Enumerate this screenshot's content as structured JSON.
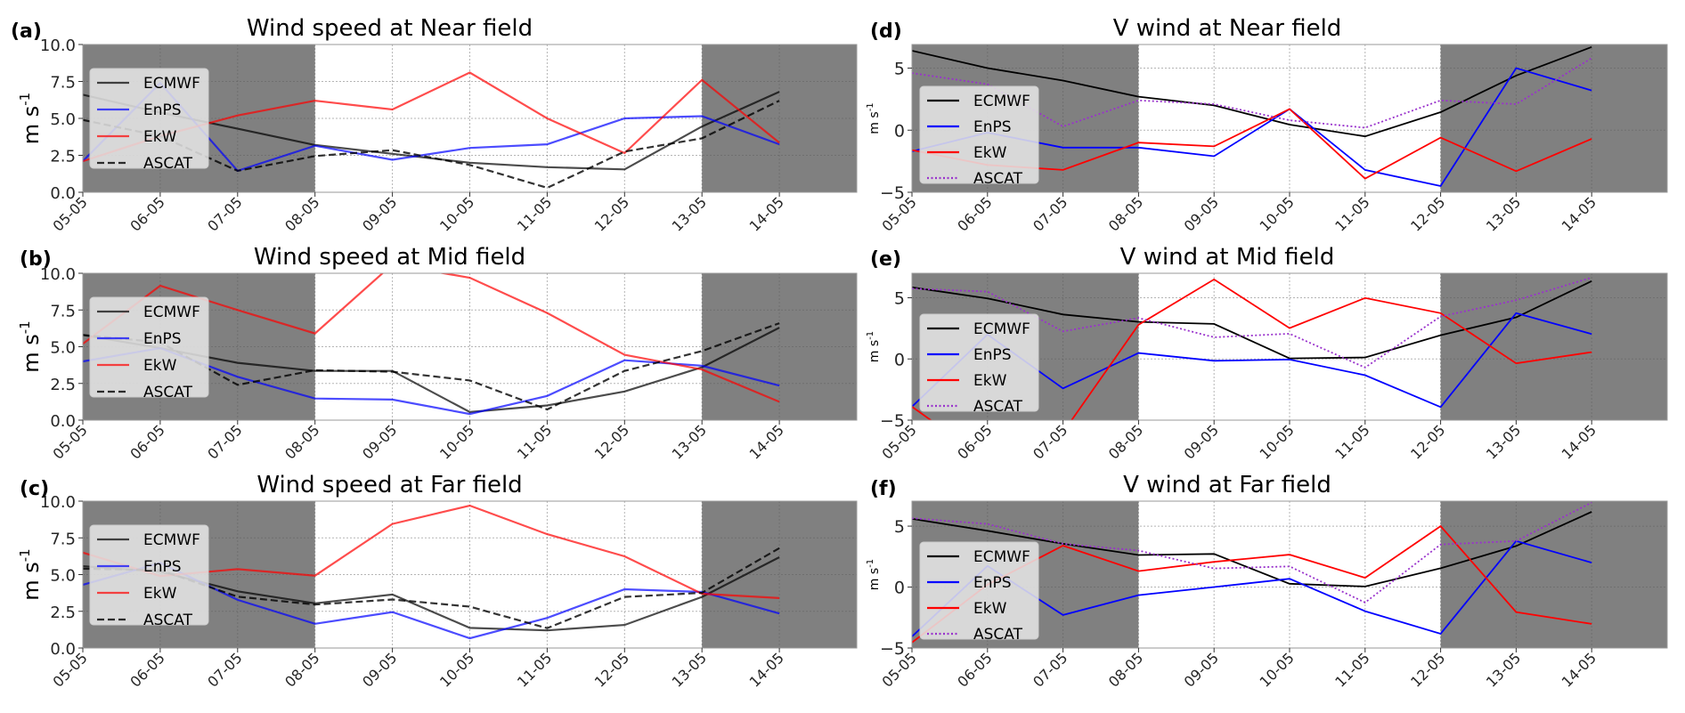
{
  "chart_data": [
    {
      "type": "line",
      "panel": "(a)",
      "title": "Wind speed at Near field",
      "xlabel": "",
      "ylabel": "m s-1",
      "ylim": [
        0,
        10
      ],
      "yticks": [
        "0.0",
        "2.5",
        "5.0",
        "7.5",
        "10.0"
      ],
      "ytick_values": [
        0,
        2.5,
        5,
        7.5,
        10
      ],
      "x": [
        "05-05",
        "06-05",
        "07-05",
        "08-05",
        "09-05",
        "10-05",
        "11-05",
        "12-05",
        "13-05",
        "14-05"
      ],
      "grid": true,
      "shaded_ranges": [
        [
          "05-05",
          "08-05"
        ],
        [
          "13-05",
          "end"
        ]
      ],
      "legend_position": "upper-left",
      "series": [
        {
          "name": "ECMWF",
          "color": "#000000",
          "style": "solid",
          "alpha": 0.7,
          "values": [
            6.6,
            5.4,
            4.3,
            3.2,
            2.6,
            2.0,
            1.7,
            1.55,
            4.45,
            6.8
          ]
        },
        {
          "name": "EnPS",
          "color": "#0000ff",
          "style": "solid",
          "alpha": 0.7,
          "values": [
            2.1,
            7.4,
            1.45,
            3.15,
            2.2,
            3.0,
            3.25,
            5.0,
            5.15,
            3.25
          ]
        },
        {
          "name": "EkW",
          "color": "#ff0000",
          "style": "solid",
          "alpha": 0.7,
          "values": [
            2.1,
            3.8,
            5.2,
            6.2,
            5.6,
            8.1,
            5.0,
            2.65,
            7.6,
            3.35
          ]
        },
        {
          "name": "ASCAT",
          "color": "#000000",
          "style": "dashed",
          "alpha": 0.8,
          "values": [
            4.9,
            3.8,
            1.45,
            2.45,
            2.85,
            1.85,
            0.3,
            2.75,
            3.65,
            6.2
          ]
        }
      ]
    },
    {
      "type": "line",
      "panel": "(b)",
      "title": "Wind speed at Mid field",
      "xlabel": "",
      "ylabel": "m s-1",
      "ylim": [
        0,
        10
      ],
      "yticks": [
        "0.0",
        "2.5",
        "5.0",
        "7.5",
        "10.0"
      ],
      "ytick_values": [
        0,
        2.5,
        5,
        7.5,
        10
      ],
      "x": [
        "05-05",
        "06-05",
        "07-05",
        "08-05",
        "09-05",
        "10-05",
        "11-05",
        "12-05",
        "13-05",
        "14-05"
      ],
      "grid": true,
      "shaded_ranges": [
        [
          "05-05",
          "08-05"
        ],
        [
          "13-05",
          "end"
        ]
      ],
      "legend_position": "upper-left",
      "series": [
        {
          "name": "ECMWF",
          "color": "#000000",
          "style": "solid",
          "alpha": 0.7,
          "values": [
            5.8,
            4.9,
            3.9,
            3.35,
            3.35,
            0.55,
            1.0,
            1.95,
            3.6,
            6.3
          ]
        },
        {
          "name": "EnPS",
          "color": "#0000ff",
          "style": "solid",
          "alpha": 0.7,
          "values": [
            4.0,
            4.9,
            2.95,
            1.47,
            1.4,
            0.42,
            1.65,
            4.08,
            3.7,
            2.35
          ]
        },
        {
          "name": "EkW",
          "color": "#ff0000",
          "style": "solid",
          "alpha": 0.7,
          "values": [
            5.2,
            9.15,
            7.5,
            5.9,
            10.6,
            9.7,
            7.3,
            4.45,
            3.45,
            1.25
          ]
        },
        {
          "name": "ASCAT",
          "color": "#000000",
          "style": "dashed",
          "alpha": 0.8,
          "values": [
            5.8,
            5.3,
            2.4,
            3.4,
            3.3,
            2.7,
            0.73,
            3.35,
            4.7,
            6.6
          ]
        }
      ]
    },
    {
      "type": "line",
      "panel": "(c)",
      "title": "Wind speed at Far field",
      "xlabel": "",
      "ylabel": "m s-1",
      "ylim": [
        0,
        10
      ],
      "yticks": [
        "0.0",
        "2.5",
        "5.0",
        "7.5",
        "10.0"
      ],
      "ytick_values": [
        0,
        2.5,
        5,
        7.5,
        10
      ],
      "x": [
        "05-05",
        "06-05",
        "07-05",
        "08-05",
        "09-05",
        "10-05",
        "11-05",
        "12-05",
        "13-05",
        "14-05"
      ],
      "grid": true,
      "shaded_ranges": [
        [
          "05-05",
          "08-05"
        ],
        [
          "13-05",
          "end"
        ]
      ],
      "legend_position": "upper-left",
      "series": [
        {
          "name": "ECMWF",
          "color": "#000000",
          "style": "solid",
          "alpha": 0.7,
          "values": [
            5.57,
            5.2,
            3.86,
            3.04,
            3.64,
            1.37,
            1.2,
            1.57,
            3.48,
            6.18
          ]
        },
        {
          "name": "EnPS",
          "color": "#0000ff",
          "style": "solid",
          "alpha": 0.7,
          "values": [
            4.3,
            5.8,
            3.28,
            1.65,
            2.45,
            0.66,
            2.05,
            4.0,
            3.82,
            2.35
          ]
        },
        {
          "name": "EkW",
          "color": "#ff0000",
          "style": "solid",
          "alpha": 0.7,
          "values": [
            6.5,
            4.9,
            5.37,
            4.93,
            8.45,
            9.7,
            7.75,
            6.24,
            3.7,
            3.4
          ]
        },
        {
          "name": "ASCAT",
          "color": "#000000",
          "style": "dashed",
          "alpha": 0.8,
          "values": [
            5.4,
            5.3,
            3.5,
            2.96,
            3.3,
            2.82,
            1.35,
            3.48,
            3.76,
            6.8
          ]
        }
      ]
    },
    {
      "type": "line",
      "panel": "(d)",
      "title": "V wind at Near field",
      "xlabel": "",
      "ylabel": "m s-1",
      "ylim": [
        -5,
        6.9
      ],
      "yticks": [
        "−5",
        "0",
        "5"
      ],
      "ytick_values": [
        -5,
        0,
        5
      ],
      "x": [
        "05-05",
        "06-05",
        "07-05",
        "08-05",
        "09-05",
        "10-05",
        "11-05",
        "12-05",
        "13-05",
        "14-05"
      ],
      "grid": true,
      "shaded_ranges": [
        [
          "05-05",
          "08-05"
        ],
        [
          "12-05",
          "end"
        ]
      ],
      "legend_position": "center-left",
      "series": [
        {
          "name": "ECMWF",
          "color": "#000000",
          "style": "solid",
          "alpha": 1,
          "values": [
            6.4,
            5.0,
            4.0,
            2.7,
            2.0,
            0.45,
            -0.5,
            1.45,
            4.4,
            6.7
          ]
        },
        {
          "name": "EnPS",
          "color": "#0000ff",
          "style": "solid",
          "alpha": 1,
          "values": [
            -1.7,
            -0.2,
            -1.4,
            -1.4,
            -2.1,
            1.7,
            -3.2,
            -4.5,
            5.0,
            3.2
          ]
        },
        {
          "name": "EkW",
          "color": "#ff0000",
          "style": "solid",
          "alpha": 1,
          "values": [
            -1.6,
            -2.8,
            -3.2,
            -1.0,
            -1.3,
            1.7,
            -3.9,
            -0.6,
            -3.3,
            -0.7
          ]
        },
        {
          "name": "ASCAT",
          "color": "#9932cc",
          "style": "dotted",
          "alpha": 1,
          "values": [
            4.6,
            3.7,
            0.3,
            2.4,
            2.1,
            0.8,
            0.2,
            2.4,
            2.1,
            5.8
          ]
        }
      ]
    },
    {
      "type": "line",
      "panel": "(e)",
      "title": "V wind at Mid field",
      "xlabel": "",
      "ylabel": "m s-1",
      "ylim": [
        -5,
        7.0
      ],
      "yticks": [
        "−5",
        "0",
        "5"
      ],
      "ytick_values": [
        -5,
        0,
        5
      ],
      "x": [
        "05-05",
        "06-05",
        "07-05",
        "08-05",
        "09-05",
        "10-05",
        "11-05",
        "12-05",
        "13-05",
        "14-05"
      ],
      "grid": true,
      "shaded_ranges": [
        [
          "05-05",
          "08-05"
        ],
        [
          "12-05",
          "end"
        ]
      ],
      "legend_position": "center-left",
      "series": [
        {
          "name": "ECMWF",
          "color": "#000000",
          "style": "solid",
          "alpha": 1,
          "values": [
            5.85,
            4.95,
            3.63,
            3.03,
            2.86,
            0.05,
            0.12,
            1.94,
            3.4,
            6.36
          ]
        },
        {
          "name": "EnPS",
          "color": "#0000ff",
          "style": "solid",
          "alpha": 1,
          "values": [
            -3.9,
            2.0,
            -2.4,
            0.48,
            -0.15,
            -0.05,
            -1.33,
            -3.93,
            3.74,
            2.04
          ]
        },
        {
          "name": "EkW",
          "color": "#ff0000",
          "style": "solid",
          "alpha": 1,
          "values": [
            -3.9,
            -8.3,
            -6.0,
            2.8,
            6.5,
            2.52,
            4.98,
            3.74,
            -0.36,
            0.56
          ]
        },
        {
          "name": "ASCAT",
          "color": "#9932cc",
          "style": "dotted",
          "alpha": 1,
          "values": [
            5.75,
            5.5,
            2.25,
            3.35,
            1.77,
            2.06,
            -0.7,
            3.47,
            4.8,
            6.65
          ]
        }
      ]
    },
    {
      "type": "line",
      "panel": "(f)",
      "title": "V wind at Far field",
      "xlabel": "",
      "ylabel": "m s-1",
      "ylim": [
        -5,
        7.05
      ],
      "yticks": [
        "−5",
        "0",
        "5"
      ],
      "ytick_values": [
        -5,
        0,
        5
      ],
      "x": [
        "05-05",
        "06-05",
        "07-05",
        "08-05",
        "09-05",
        "10-05",
        "11-05",
        "12-05",
        "13-05",
        "14-05"
      ],
      "grid": true,
      "shaded_ranges": [
        [
          "05-05",
          "08-05"
        ],
        [
          "12-05",
          "end"
        ]
      ],
      "legend_position": "center-left",
      "series": [
        {
          "name": "ECMWF",
          "color": "#000000",
          "style": "solid",
          "alpha": 1,
          "values": [
            5.6,
            4.62,
            3.55,
            2.63,
            2.72,
            0.27,
            0.05,
            1.54,
            3.37,
            6.17
          ]
        },
        {
          "name": "EnPS",
          "color": "#0000ff",
          "style": "solid",
          "alpha": 1,
          "values": [
            -4.06,
            1.73,
            -2.29,
            -0.66,
            0.0,
            0.68,
            -1.98,
            -3.83,
            3.78,
            2.0
          ]
        },
        {
          "name": "EkW",
          "color": "#ff0000",
          "style": "solid",
          "alpha": 1,
          "values": [
            -4.55,
            0.2,
            3.4,
            1.31,
            2.07,
            2.66,
            0.76,
            5.0,
            -2.05,
            -3.02
          ]
        },
        {
          "name": "ASCAT",
          "color": "#9932cc",
          "style": "dotted",
          "alpha": 1,
          "values": [
            5.65,
            5.18,
            3.55,
            3.0,
            1.53,
            1.7,
            -1.27,
            3.49,
            3.78,
            6.93
          ]
        }
      ]
    }
  ],
  "colors": {
    "shade": "#808080",
    "legend_bg": "#e8e8e8",
    "grid": "#b0b0b0"
  }
}
